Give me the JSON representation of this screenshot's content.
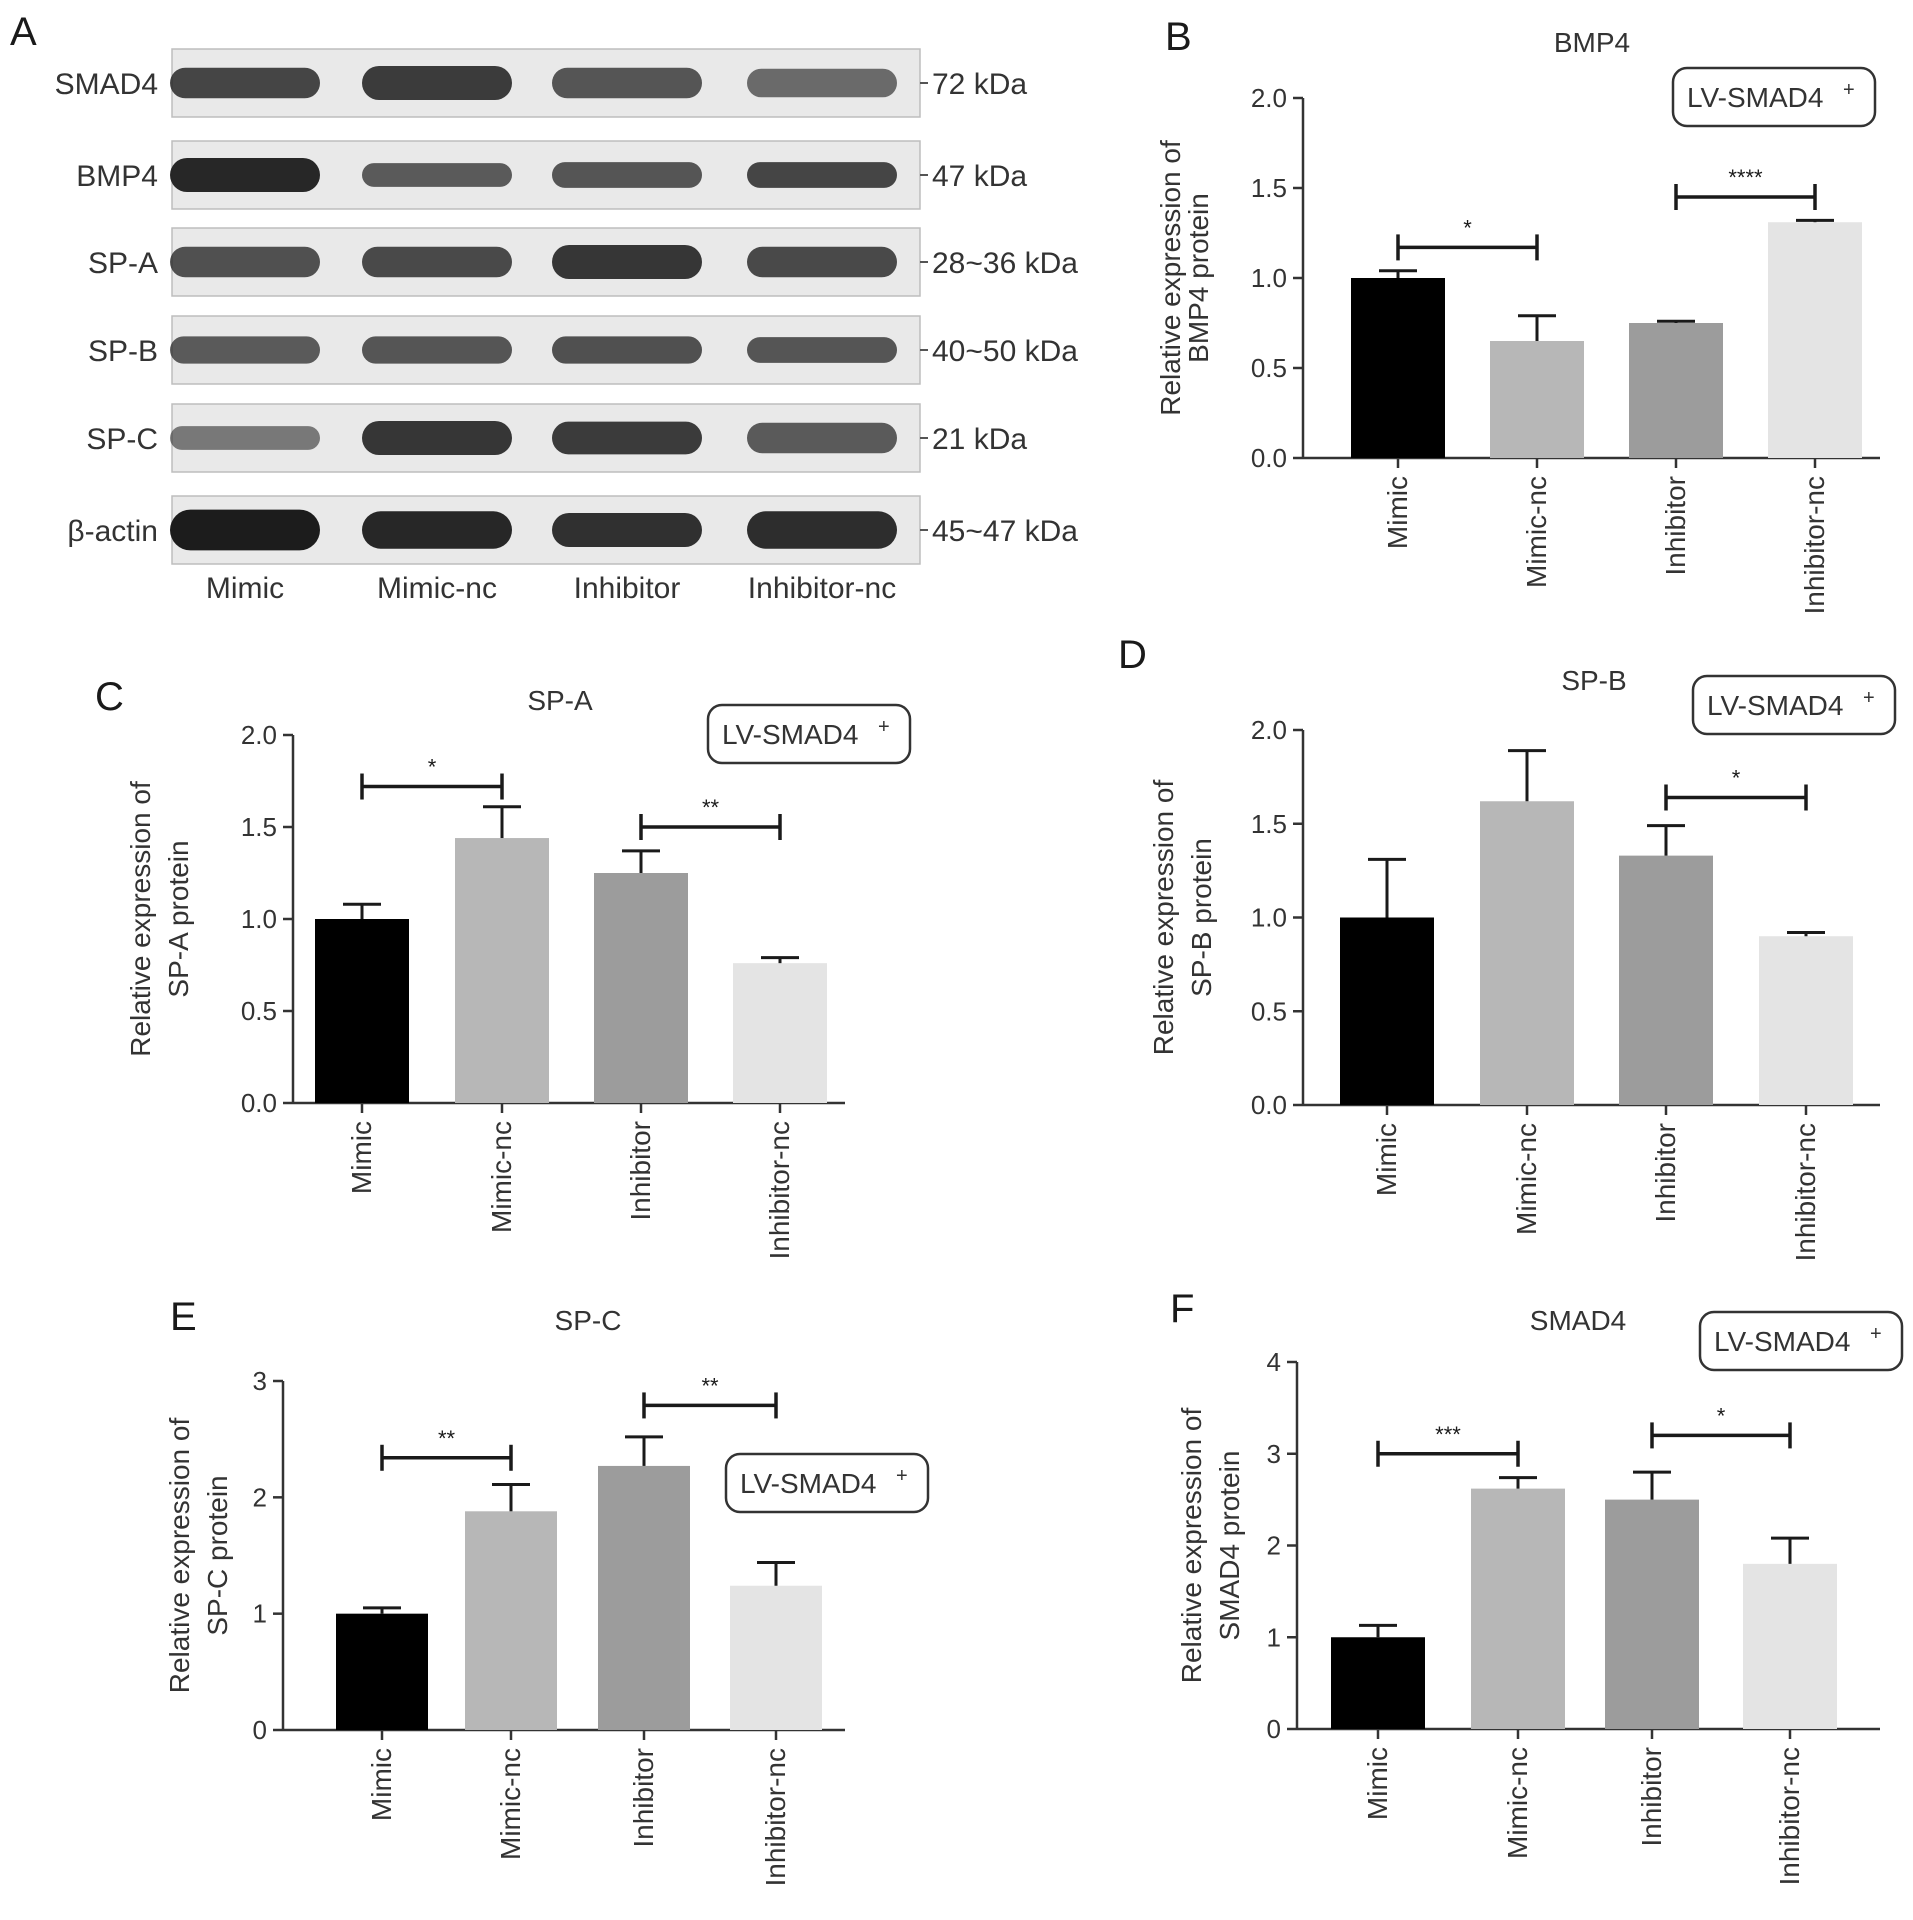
{
  "panel_a": {
    "letter": "A",
    "rows": [
      {
        "name": "SMAD4",
        "size": "72 kDa",
        "intensity": [
          0.8,
          0.85,
          0.72,
          0.62
        ],
        "thickness": [
          0.45,
          0.5,
          0.45,
          0.42
        ]
      },
      {
        "name": "BMP4",
        "size": "47 kDa",
        "intensity": [
          0.95,
          0.7,
          0.72,
          0.8
        ],
        "thickness": [
          0.5,
          0.35,
          0.38,
          0.38
        ]
      },
      {
        "name": "SP-A",
        "size": "28~36 kDa",
        "intensity": [
          0.75,
          0.78,
          0.88,
          0.78
        ],
        "thickness": [
          0.45,
          0.45,
          0.5,
          0.45
        ]
      },
      {
        "name": "SP-B",
        "size": "40~50 kDa",
        "intensity": [
          0.7,
          0.72,
          0.75,
          0.72
        ],
        "thickness": [
          0.4,
          0.4,
          0.4,
          0.38
        ]
      },
      {
        "name": "SP-C",
        "size": "21 kDa",
        "intensity": [
          0.55,
          0.88,
          0.85,
          0.7
        ],
        "thickness": [
          0.35,
          0.5,
          0.48,
          0.45
        ]
      },
      {
        "name": "β-actin",
        "size": "45~47 kDa",
        "intensity": [
          1.0,
          0.95,
          0.9,
          0.92
        ],
        "thickness": [
          0.6,
          0.55,
          0.5,
          0.55
        ]
      }
    ],
    "lanes": [
      "Mimic",
      "Mimic-nc",
      "Inhibitor",
      "Inhibitor-nc"
    ]
  },
  "chart_data": [
    {
      "panel": "B",
      "type": "bar",
      "title": "BMP4",
      "ylabel_lines": [
        "Relative expression of",
        "BMP4 protein"
      ],
      "categories": [
        "Mimic",
        "Mimic-nc",
        "Inhibitor",
        "Inhibitor-nc"
      ],
      "values": [
        1.0,
        0.65,
        0.75,
        1.31
      ],
      "errors": [
        0.04,
        0.14,
        0.01,
        0.01
      ],
      "ylim": [
        0,
        2.0
      ],
      "yticks": [
        0.0,
        0.5,
        1.0,
        1.5,
        2.0
      ],
      "ytick_labels": [
        "0.0",
        "0.5",
        "1.0",
        "1.5",
        "2.0"
      ],
      "legend_text": "LV-SMAD4",
      "legend_sup": "+",
      "legend_position": "top-right",
      "significance": [
        {
          "from": 0,
          "to": 1,
          "label": "*",
          "y": 1.17
        },
        {
          "from": 2,
          "to": 3,
          "label": "****",
          "y": 1.45
        }
      ]
    },
    {
      "panel": "C",
      "type": "bar",
      "title": "SP-A",
      "ylabel_lines": [
        "Relative expression of",
        "SP-A protein"
      ],
      "categories": [
        "Mimic",
        "Mimic-nc",
        "Inhibitor",
        "Inhibitor-nc"
      ],
      "values": [
        1.0,
        1.44,
        1.25,
        0.76
      ],
      "errors": [
        0.08,
        0.17,
        0.12,
        0.03
      ],
      "ylim": [
        0,
        2.0
      ],
      "yticks": [
        0.0,
        0.5,
        1.0,
        1.5,
        2.0
      ],
      "ytick_labels": [
        "0.0",
        "0.5",
        "1.0",
        "1.5",
        "2.0"
      ],
      "legend_text": "LV-SMAD4",
      "legend_sup": "+",
      "legend_position": "top-right",
      "significance": [
        {
          "from": 0,
          "to": 1,
          "label": "*",
          "y": 1.72
        },
        {
          "from": 2,
          "to": 3,
          "label": "**",
          "y": 1.5
        }
      ]
    },
    {
      "panel": "D",
      "type": "bar",
      "title": "SP-B",
      "ylabel_lines": [
        "Relative expression of",
        "SP-B protein"
      ],
      "categories": [
        "Mimic",
        "Mimic-nc",
        "Inhibitor",
        "Inhibitor-nc"
      ],
      "values": [
        1.0,
        1.62,
        1.33,
        0.9
      ],
      "errors": [
        0.31,
        0.27,
        0.16,
        0.02
      ],
      "ylim": [
        0,
        2.0
      ],
      "yticks": [
        0.0,
        0.5,
        1.0,
        1.5,
        2.0
      ],
      "ytick_labels": [
        "0.0",
        "0.5",
        "1.0",
        "1.5",
        "2.0"
      ],
      "legend_text": "LV-SMAD4",
      "legend_sup": "+",
      "legend_position": "top-right",
      "significance": [
        {
          "from": 2,
          "to": 3,
          "label": "*",
          "y": 1.64
        }
      ]
    },
    {
      "panel": "E",
      "type": "bar",
      "title": "SP-C",
      "ylabel_lines": [
        "Relative expression of",
        "SP-C protein"
      ],
      "categories": [
        "Mimic",
        "Mimic-nc",
        "Inhibitor",
        "Inhibitor-nc"
      ],
      "values": [
        1.0,
        1.88,
        2.27,
        1.24
      ],
      "errors": [
        0.05,
        0.23,
        0.25,
        0.2
      ],
      "ylim": [
        0,
        3
      ],
      "yticks": [
        0,
        1,
        2,
        3
      ],
      "ytick_labels": [
        "0",
        "1",
        "2",
        "3"
      ],
      "legend_text": "LV-SMAD4",
      "legend_sup": "+",
      "legend_position": "right",
      "significance": [
        {
          "from": 0,
          "to": 1,
          "label": "**",
          "y": 2.34
        },
        {
          "from": 2,
          "to": 3,
          "label": "**",
          "y": 2.79
        }
      ]
    },
    {
      "panel": "F",
      "type": "bar",
      "title": "SMAD4",
      "ylabel_lines": [
        "Relative expression of",
        "SMAD4 protein"
      ],
      "categories": [
        "Mimic",
        "Mimic-nc",
        "Inhibitor",
        "Inhibitor-nc"
      ],
      "values": [
        1.0,
        2.62,
        2.5,
        1.8
      ],
      "errors": [
        0.13,
        0.12,
        0.3,
        0.28
      ],
      "ylim": [
        0,
        4
      ],
      "yticks": [
        0,
        1,
        2,
        3,
        4
      ],
      "ytick_labels": [
        "0",
        "1",
        "2",
        "3",
        "4"
      ],
      "legend_text": "LV-SMAD4",
      "legend_sup": "+",
      "legend_position": "top-right",
      "significance": [
        {
          "from": 0,
          "to": 1,
          "label": "***",
          "y": 3.0
        },
        {
          "from": 2,
          "to": 3,
          "label": "*",
          "y": 3.2
        }
      ]
    }
  ],
  "colors": {
    "bars": [
      "#000000",
      "#b7b7b7",
      "#9c9c9c",
      "#e4e4e4"
    ],
    "axis": "#333333",
    "blot_background": "#e9e9e9",
    "band": "#1c1c1c"
  }
}
